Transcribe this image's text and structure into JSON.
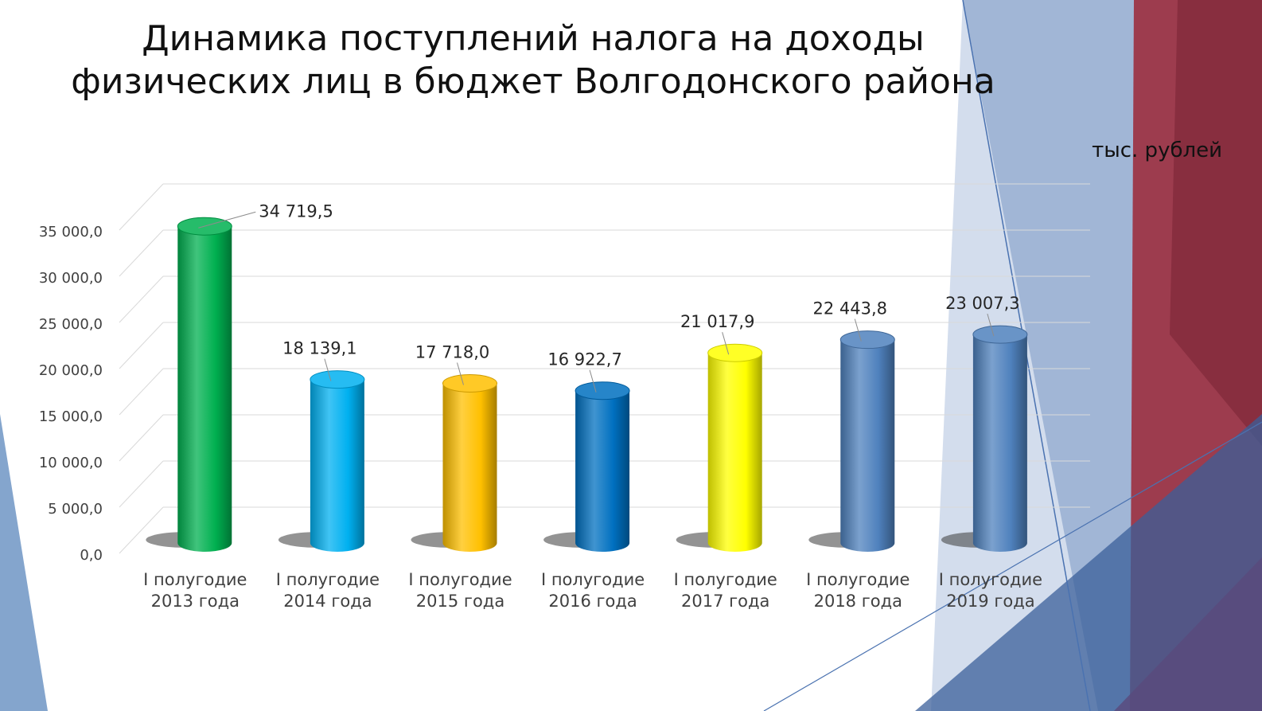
{
  "title_lines": [
    "Динамика поступлений налога на доходы",
    "физических лиц в бюджет Волгодонского района"
  ],
  "unit_label": "тыс. рублей",
  "chart_data": {
    "type": "bar",
    "title": "Динамика поступлений налога на доходы физических лиц в бюджет Волгодонского района",
    "xlabel": "",
    "ylabel": "",
    "ylim": [
      0,
      35000
    ],
    "y_ticks": [
      0,
      5000,
      10000,
      15000,
      20000,
      25000,
      30000,
      35000
    ],
    "y_tick_labels": [
      "0,0",
      "5 000,0",
      "10 000,0",
      "15 000,0",
      "20 000,0",
      "25 000,0",
      "30 000,0",
      "35 000,0"
    ],
    "grid": true,
    "legend": "none",
    "categories": [
      [
        "I полугодие",
        "2013 года"
      ],
      [
        "I полугодие",
        "2014 года"
      ],
      [
        "I полугодие",
        "2015 года"
      ],
      [
        "I полугодие",
        "2016 года"
      ],
      [
        "I полугодие",
        "2017 года"
      ],
      [
        "I полугодие",
        "2018 года"
      ],
      [
        "I полугодие",
        "2019 года"
      ]
    ],
    "values": [
      34719.5,
      18139.1,
      17718.0,
      16922.7,
      21017.9,
      22443.8,
      23007.3
    ],
    "value_labels": [
      "34 719,5",
      "18 139,1",
      "17 718,0",
      "16 922,7",
      "21 017,9",
      "22 443,8",
      "23 007,3"
    ],
    "colors": [
      "#00b050",
      "#00b0f0",
      "#ffc000",
      "#0070c0",
      "#ffff00",
      "#4f81bd",
      "#4f81bd"
    ]
  }
}
